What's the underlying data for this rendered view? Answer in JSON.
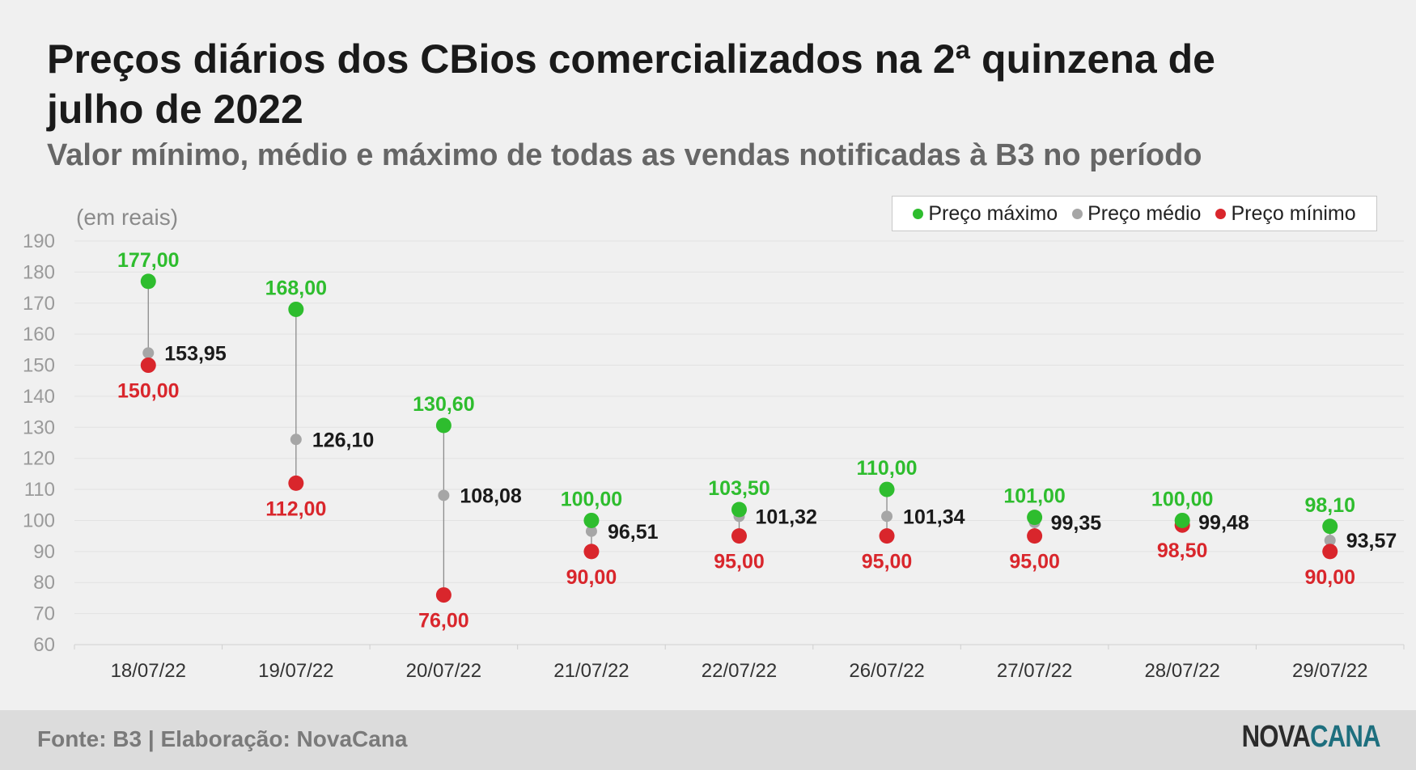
{
  "header": {
    "title": "Preços diários dos CBios comercializados na 2ª quinzena de julho de 2022",
    "subtitle": "Valor mínimo, médio e máximo de todas as vendas notificadas à B3 no período"
  },
  "legend": {
    "max_label": "Preço máximo",
    "avg_label": "Preço médio",
    "min_label": "Preço mínimo"
  },
  "footer": {
    "source": "Fonte: B3 | Elaboração: NovaCana",
    "logo_part1": "NOVA",
    "logo_part2": "CANA"
  },
  "colors": {
    "max": "#2ebd2e",
    "avg": "#a6a6a6",
    "min": "#d9262c",
    "avg_label": "#1a1a1a",
    "logo_nova": "#2b2b2b",
    "logo_cana": "#1e6f7e"
  },
  "chart_data": {
    "type": "scatter",
    "unit_label": "(em reais)",
    "categories": [
      "18/07/22",
      "19/07/22",
      "20/07/22",
      "21/07/22",
      "22/07/22",
      "26/07/22",
      "27/07/22",
      "28/07/22",
      "29/07/22"
    ],
    "series": [
      {
        "name": "Preço máximo",
        "key": "max",
        "values": [
          177.0,
          168.0,
          130.6,
          100.0,
          103.5,
          110.0,
          101.0,
          100.0,
          98.1
        ],
        "labels": [
          "177,00",
          "168,00",
          "130,60",
          "100,00",
          "103,50",
          "110,00",
          "101,00",
          "100,00",
          "98,10"
        ]
      },
      {
        "name": "Preço médio",
        "key": "avg",
        "values": [
          153.95,
          126.1,
          108.08,
          96.51,
          101.32,
          101.34,
          99.35,
          99.48,
          93.57
        ],
        "labels": [
          "153,95",
          "126,10",
          "108,08",
          "96,51",
          "101,32",
          "101,34",
          "99,35",
          "99,48",
          "93,57"
        ]
      },
      {
        "name": "Preço mínimo",
        "key": "min",
        "values": [
          150.0,
          112.0,
          76.0,
          90.0,
          95.0,
          95.0,
          95.0,
          98.5,
          90.0
        ],
        "labels": [
          "150,00",
          "112,00",
          "76,00",
          "90,00",
          "95,00",
          "95,00",
          "95,00",
          "98,50",
          "90,00"
        ]
      }
    ],
    "yticks": [
      "60",
      "70",
      "80",
      "90",
      "100",
      "110",
      "120",
      "130",
      "140",
      "150",
      "160",
      "170",
      "180",
      "190"
    ],
    "ylim": [
      60,
      190
    ],
    "grid": true,
    "legend_position": "top-right"
  }
}
